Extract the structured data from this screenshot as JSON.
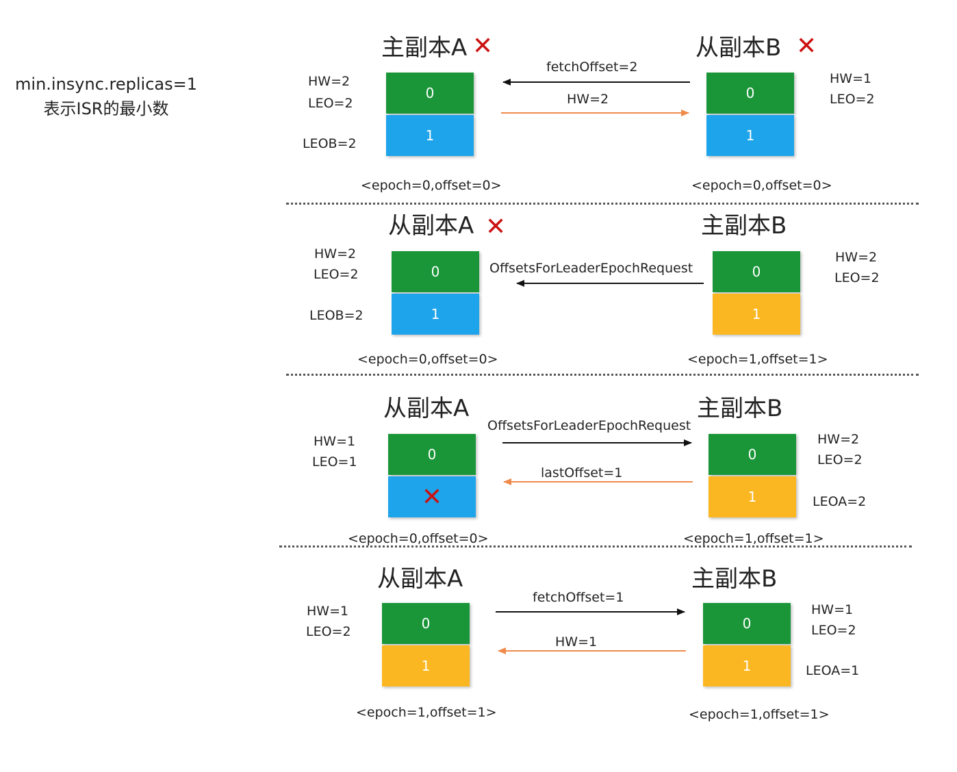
{
  "note": {
    "line1": "min.insync.replicas=1",
    "line2": "表示ISR的最小数"
  },
  "colors": {
    "green": "#1a9639",
    "blue": "#1ea4ea",
    "yellow": "#fbb721",
    "black_arrow": "#111111",
    "orange_arrow": "#ef8a4a",
    "cross": "#cc1111"
  },
  "cell_values": {
    "first": "0",
    "second": "1"
  },
  "panels": [
    {
      "left": {
        "title": "主副本A",
        "crossed": true,
        "hw": "HW=2",
        "leo": "LEO=2",
        "extra": "LEOB=2",
        "epoch": "<epoch=0,offset=0>",
        "cell1_color": "blue",
        "cell1_crossed": false
      },
      "right": {
        "title": "从副本B",
        "crossed": true,
        "hw": "HW=1",
        "leo": "LEO=2",
        "extra": "",
        "epoch": "<epoch=0,offset=0>",
        "cell1_color": "blue"
      },
      "arrows": [
        {
          "label": "fetchOffset=2",
          "direction": "right-to-left",
          "color": "black"
        },
        {
          "label": "HW=2",
          "direction": "left-to-right",
          "color": "orange"
        }
      ]
    },
    {
      "left": {
        "title": "从副本A",
        "crossed": true,
        "hw": "HW=2",
        "leo": "LEO=2",
        "extra": "LEOB=2",
        "epoch": "<epoch=0,offset=0>",
        "cell1_color": "blue",
        "cell1_crossed": false
      },
      "right": {
        "title": "主副本B",
        "crossed": false,
        "hw": "HW=2",
        "leo": "LEO=2",
        "extra": "",
        "epoch": "<epoch=1,offset=1>",
        "cell1_color": "yellow"
      },
      "arrows": [
        {
          "label": "OffsetsForLeaderEpochRequest",
          "direction": "right-to-left",
          "color": "black"
        }
      ]
    },
    {
      "left": {
        "title": "从副本A",
        "crossed": false,
        "hw": "HW=1",
        "leo": "LEO=1",
        "extra": "",
        "epoch": "<epoch=0,offset=0>",
        "cell1_color": "blue",
        "cell1_crossed": true
      },
      "right": {
        "title": "主副本B",
        "crossed": false,
        "hw": "HW=2",
        "leo": "LEO=2",
        "extra": "LEOA=2",
        "epoch": "<epoch=1,offset=1>",
        "cell1_color": "yellow"
      },
      "arrows": [
        {
          "label": "OffsetsForLeaderEpochRequest",
          "direction": "left-to-right",
          "color": "black"
        },
        {
          "label": "lastOffset=1",
          "direction": "right-to-left",
          "color": "orange"
        }
      ]
    },
    {
      "left": {
        "title": "从副本A",
        "crossed": false,
        "hw": "HW=1",
        "leo": "LEO=2",
        "extra": "",
        "epoch": "<epoch=1,offset=1>",
        "cell1_color": "yellow",
        "cell1_crossed": false
      },
      "right": {
        "title": "主副本B",
        "crossed": false,
        "hw": "HW=1",
        "leo": "LEO=2",
        "extra": "LEOA=1",
        "epoch": "<epoch=1,offset=1>",
        "cell1_color": "yellow"
      },
      "arrows": [
        {
          "label": "fetchOffset=1",
          "direction": "left-to-right",
          "color": "black"
        },
        {
          "label": "HW=1",
          "direction": "right-to-left",
          "color": "orange"
        }
      ]
    }
  ]
}
